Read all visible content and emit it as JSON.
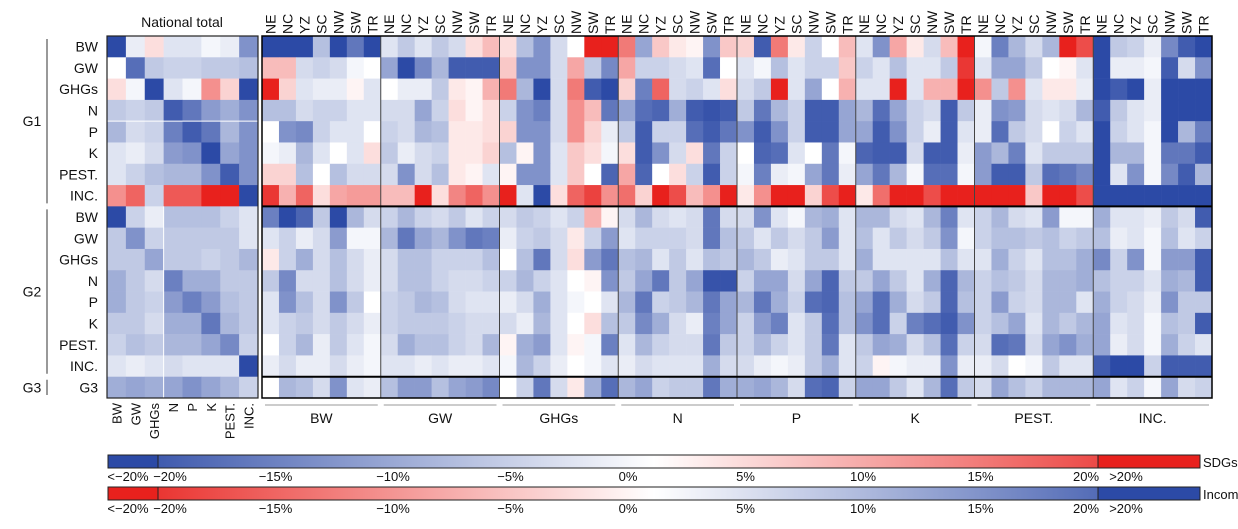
{
  "chart_data": {
    "type": "heatmap",
    "title": "National total",
    "value_unit": "%",
    "color_range": [
      -20,
      20
    ],
    "colors": {
      "negative": "#2c4aa6",
      "zero": "#ffffff",
      "positive": "#e8211d"
    },
    "row_groups": [
      {
        "label": "G1",
        "rows": [
          "BW",
          "GW",
          "GHGs",
          "N",
          "P",
          "K",
          "PEST.",
          "INC."
        ]
      },
      {
        "label": "G2",
        "rows": [
          "BW",
          "GW",
          "GHGs",
          "N",
          "P",
          "K",
          "PEST.",
          "INC."
        ]
      },
      {
        "label": "G3",
        "rows": [
          "G3"
        ]
      }
    ],
    "national_columns": [
      "BW",
      "GW",
      "GHGs",
      "N",
      "P",
      "K",
      "PEST.",
      "INC."
    ],
    "regions": [
      "NE",
      "NC",
      "YZ",
      "SC",
      "NW",
      "SW",
      "TR"
    ],
    "column_groups": [
      "BW",
      "GW",
      "GHGs",
      "N",
      "P",
      "K",
      "PEST.",
      "INC."
    ],
    "national_values": [
      [
        -20,
        -2,
        3,
        -3,
        -3,
        -1,
        -2,
        -12
      ],
      [
        0,
        -16,
        -6,
        -5,
        -5,
        -6,
        -6,
        -7
      ],
      [
        3,
        -1,
        -20,
        -3,
        -1,
        10,
        4,
        -20
      ],
      [
        -6,
        -5,
        -6,
        -18,
        -15,
        -11,
        -9,
        -12
      ],
      [
        -8,
        -4,
        -5,
        -14,
        -18,
        -15,
        -8,
        -12
      ],
      [
        -3,
        -2,
        -4,
        -11,
        -12,
        -20,
        -10,
        -12
      ],
      [
        -3,
        -5,
        -7,
        -8,
        -8,
        -12,
        -18,
        -12
      ],
      [
        10,
        14,
        -5,
        15,
        15,
        20,
        20,
        -20
      ],
      [
        -20,
        -5,
        -2,
        -7,
        -7,
        -7,
        -5,
        -3
      ],
      [
        -6,
        -12,
        -5,
        -6,
        -6,
        -6,
        -6,
        -3
      ],
      [
        -6,
        -6,
        -10,
        -6,
        -6,
        -5,
        -6,
        -8
      ],
      [
        -9,
        -6,
        -4,
        -14,
        -9,
        -9,
        -6,
        -6
      ],
      [
        -9,
        -6,
        -5,
        -11,
        -14,
        -11,
        -7,
        -6
      ],
      [
        -6,
        -6,
        -4,
        -9,
        -9,
        -15,
        -8,
        -6
      ],
      [
        -5,
        -7,
        -6,
        -8,
        -8,
        -10,
        -13,
        -5
      ],
      [
        -3,
        -2,
        -3,
        -4,
        -3,
        -3,
        -3,
        -20
      ],
      [
        -9,
        -10,
        -9,
        -10,
        -12,
        -10,
        -8,
        -5
      ]
    ],
    "regional_values": [
      [
        -20,
        -20,
        -20,
        -7,
        -20,
        -15,
        -20,
        -3,
        -6,
        -3,
        -6,
        -4,
        3,
        6,
        3,
        -7,
        -12,
        -4,
        0,
        20,
        20,
        12,
        -10,
        5,
        2,
        1,
        -12,
        5,
        4,
        -18,
        12,
        2,
        -5,
        0,
        6,
        -3,
        -12,
        8,
        2,
        -4,
        6,
        20,
        -1,
        -14,
        -8,
        -4,
        -8,
        20,
        16,
        -20,
        -6,
        -5,
        -2,
        -13,
        -18,
        -20
      ],
      [
        6,
        6,
        -4,
        -5,
        -4,
        -1,
        0,
        -10,
        -20,
        -13,
        -8,
        -18,
        -18,
        -18,
        5,
        -12,
        -12,
        -4,
        8,
        -6,
        -13,
        8,
        -5,
        -5,
        -4,
        -3,
        -16,
        0,
        -3,
        -1,
        -7,
        -3,
        -5,
        -5,
        5,
        -5,
        -3,
        -7,
        -3,
        -3,
        -6,
        18,
        -3,
        -10,
        -10,
        -6,
        0,
        1,
        -3,
        -20,
        -2,
        -2,
        -1,
        -18,
        -4,
        -12
      ],
      [
        20,
        4,
        -3,
        -2,
        -2,
        1,
        -3,
        0,
        -2,
        -2,
        -6,
        2,
        1,
        7,
        12,
        -8,
        -20,
        -4,
        12,
        -18,
        -20,
        4,
        -14,
        14,
        -4,
        -5,
        -3,
        3,
        -4,
        -6,
        20,
        -3,
        -10,
        0,
        7,
        -3,
        -3,
        20,
        -3,
        7,
        7,
        20,
        10,
        -6,
        10,
        -3,
        2,
        2,
        -2,
        -20,
        -18,
        -20,
        -2,
        -20,
        -20,
        -20
      ],
      [
        -7,
        -7,
        -4,
        -5,
        -5,
        -3,
        -3,
        -4,
        -4,
        -10,
        -5,
        3,
        1,
        3,
        -5,
        -12,
        -14,
        -4,
        10,
        6,
        -15,
        -10,
        -16,
        -17,
        -9,
        -18,
        -19,
        -18,
        -6,
        -15,
        -8,
        -5,
        -18,
        -18,
        -10,
        -8,
        -16,
        -10,
        -5,
        -4,
        -18,
        -6,
        -2,
        -12,
        -11,
        -4,
        -3,
        -4,
        -8,
        -18,
        -6,
        -3,
        -2,
        -20,
        -20,
        -20
      ],
      [
        0,
        -12,
        -13,
        -5,
        -3,
        -3,
        0,
        -5,
        -4,
        -8,
        -7,
        2,
        2,
        3,
        4,
        -12,
        -12,
        -4,
        10,
        4,
        -2,
        -6,
        -18,
        -5,
        -5,
        -16,
        -18,
        -15,
        -12,
        -18,
        -12,
        -5,
        -18,
        -18,
        -10,
        -10,
        -18,
        -12,
        -5,
        -2,
        -18,
        -3,
        -2,
        -16,
        -6,
        -4,
        0,
        -5,
        -3,
        -20,
        -5,
        -3,
        -1,
        -20,
        -8,
        -14
      ],
      [
        -1,
        -2,
        -8,
        -3,
        0,
        -3,
        3,
        -6,
        -2,
        -4,
        -5,
        2,
        2,
        4,
        -7,
        1,
        -12,
        -3,
        5,
        3,
        -1,
        3,
        -18,
        -12,
        -4,
        3,
        -15,
        -5,
        0,
        -17,
        -16,
        -3,
        0,
        -15,
        -1,
        -17,
        -18,
        -18,
        -4,
        -18,
        -18,
        -2,
        -11,
        -8,
        -14,
        -3,
        -6,
        -6,
        -6,
        -20,
        -8,
        -8,
        -1,
        -15,
        -15,
        -18
      ],
      [
        4,
        4,
        -7,
        0,
        -7,
        -4,
        -4,
        -4,
        -12,
        -4,
        -7,
        2,
        1,
        -3,
        1,
        -12,
        -12,
        -3,
        5,
        0,
        -17,
        8,
        -17,
        0,
        3,
        -5,
        -18,
        -5,
        -1,
        -14,
        -2,
        -1,
        -10,
        -15,
        -2,
        -10,
        -15,
        -8,
        -1,
        -16,
        -16,
        -1,
        -11,
        -18,
        -18,
        -6,
        -16,
        -15,
        -13,
        -20,
        -3,
        -12,
        -1,
        -13,
        -18,
        -8
      ],
      [
        18,
        7,
        14,
        3,
        8,
        9,
        9,
        6,
        6,
        20,
        3,
        11,
        14,
        10,
        20,
        -3,
        -20,
        3,
        14,
        17,
        10,
        13,
        4,
        20,
        16,
        6,
        10,
        20,
        2,
        10,
        20,
        20,
        4,
        16,
        20,
        2,
        13,
        20,
        20,
        16,
        20,
        20,
        20,
        20,
        20,
        5,
        20,
        20,
        16,
        -20,
        -20,
        -20,
        -20,
        -20,
        -20,
        -20
      ],
      [
        -14,
        -20,
        -17,
        -6,
        -20,
        -8,
        -4,
        -5,
        -8,
        -5,
        -4,
        -6,
        -3,
        -5,
        -4,
        -6,
        -5,
        -3,
        -5,
        7,
        1,
        -4,
        -8,
        -4,
        -3,
        -4,
        -15,
        -4,
        -4,
        -12,
        -3,
        -1,
        -8,
        -9,
        -3,
        -8,
        -8,
        -4,
        -3,
        -8,
        -14,
        -3,
        -5,
        -8,
        -4,
        -3,
        -11,
        -1,
        -1,
        -9,
        -3,
        -3,
        -2,
        -6,
        -4,
        -18
      ],
      [
        -3,
        -5,
        -2,
        -4,
        -11,
        -1,
        -1,
        -8,
        -15,
        -10,
        -8,
        -12,
        -15,
        -14,
        -2,
        -5,
        -6,
        -4,
        2,
        -5,
        -11,
        -3,
        -5,
        -5,
        -5,
        -4,
        -15,
        -7,
        -6,
        -3,
        -6,
        -4,
        -6,
        -11,
        -3,
        -7,
        -3,
        -6,
        -4,
        -6,
        -12,
        -1,
        -5,
        -7,
        -7,
        -6,
        -7,
        -5,
        -6,
        -7,
        -2,
        -3,
        -1,
        -7,
        -3,
        -5
      ],
      [
        2,
        -5,
        -9,
        -4,
        -7,
        -4,
        -2,
        -4,
        -7,
        -7,
        -5,
        -5,
        -5,
        -7,
        0,
        -7,
        -15,
        -4,
        3,
        -11,
        -15,
        -7,
        -8,
        -3,
        -6,
        -3,
        -7,
        -6,
        -8,
        -6,
        -2,
        -3,
        -6,
        -6,
        -3,
        -9,
        -3,
        -3,
        -3,
        -3,
        -7,
        -3,
        -3,
        -9,
        -5,
        -3,
        -7,
        -7,
        -9,
        -13,
        -5,
        -12,
        -1,
        -11,
        -11,
        -18
      ],
      [
        -6,
        -13,
        -4,
        -4,
        -7,
        -4,
        -2,
        -4,
        -7,
        -7,
        -5,
        -4,
        -4,
        -5,
        -5,
        -8,
        -5,
        -3,
        0,
        1,
        -12,
        -6,
        -10,
        -15,
        -6,
        -10,
        -19,
        -19,
        -5,
        -10,
        -10,
        -4,
        -10,
        -17,
        -6,
        -6,
        -10,
        -6,
        -3,
        -9,
        -17,
        -8,
        -5,
        -7,
        -6,
        -4,
        -8,
        -8,
        -9,
        -7,
        -5,
        -5,
        -3,
        -9,
        -8,
        -18
      ],
      [
        -3,
        -12,
        -7,
        -4,
        -12,
        -6,
        0,
        -5,
        -6,
        -8,
        -7,
        -4,
        -3,
        -3,
        -2,
        -4,
        -9,
        -3,
        -1,
        0,
        -3,
        -8,
        -15,
        -5,
        -6,
        -8,
        -15,
        -10,
        -8,
        -15,
        -9,
        -5,
        -16,
        -17,
        -7,
        -10,
        -16,
        -9,
        -4,
        -6,
        -17,
        -7,
        -5,
        -11,
        -5,
        -4,
        -8,
        -8,
        -3,
        -9,
        -5,
        -4,
        -2,
        -12,
        -6,
        -6
      ],
      [
        -3,
        -5,
        -6,
        -4,
        -6,
        -4,
        -2,
        -5,
        -6,
        -6,
        -6,
        -5,
        -4,
        -4,
        -4,
        -2,
        -8,
        -3,
        0,
        3,
        -7,
        -6,
        -13,
        -9,
        -4,
        -2,
        -14,
        -10,
        -5,
        -11,
        -14,
        -3,
        -6,
        -16,
        -7,
        -12,
        -16,
        -5,
        -14,
        -16,
        -18,
        -12,
        -5,
        -7,
        -10,
        -3,
        -8,
        -6,
        -8,
        -10,
        -3,
        -4,
        -1,
        -7,
        -6,
        -18
      ],
      [
        0,
        -5,
        -8,
        -2,
        -6,
        -3,
        -1,
        -4,
        -9,
        -7,
        -7,
        -5,
        -4,
        -8,
        1,
        -9,
        -11,
        -3,
        1,
        -1,
        -14,
        -3,
        -8,
        -5,
        -4,
        -4,
        -15,
        -6,
        -5,
        -8,
        -5,
        -3,
        -6,
        -15,
        -3,
        -6,
        -10,
        -9,
        -4,
        -7,
        -16,
        -5,
        -4,
        -16,
        -15,
        -4,
        -10,
        -12,
        -9,
        -10,
        -2,
        -4,
        -1,
        -9,
        -5,
        -3
      ],
      [
        -2,
        -4,
        -2,
        -2,
        -4,
        -2,
        -1,
        -3,
        -3,
        -2,
        -3,
        -2,
        -2,
        -3,
        -1,
        -8,
        -5,
        -2,
        0,
        -1,
        -3,
        -2,
        -4,
        -3,
        -3,
        -3,
        -9,
        -4,
        -4,
        -2,
        -1,
        -2,
        -6,
        -9,
        -3,
        -5,
        1,
        -1,
        -2,
        -2,
        -12,
        -2,
        -2,
        -4,
        0,
        -1,
        -6,
        -3,
        -3,
        -18,
        -20,
        -20,
        -5,
        -18,
        -18,
        -18
      ],
      [
        0,
        -8,
        -7,
        -4,
        -12,
        -3,
        -2,
        -7,
        -11,
        -11,
        -7,
        -10,
        -11,
        -13,
        0,
        -5,
        -15,
        -4,
        2,
        -9,
        -16,
        -8,
        -10,
        -5,
        -6,
        -6,
        -15,
        -9,
        -9,
        -10,
        -8,
        -4,
        -16,
        -17,
        -5,
        -10,
        -10,
        -6,
        -3,
        -8,
        -16,
        -6,
        -4,
        -10,
        -7,
        -5,
        -8,
        -8,
        -8,
        -10,
        -3,
        -5,
        -1,
        -10,
        -4,
        -5
      ]
    ],
    "legend": {
      "sdgs_label": "SDGs",
      "income_label": "Income",
      "ticks": [
        "<−20%",
        "−20%",
        "−15%",
        "−10%",
        "−5%",
        "0%",
        "5%",
        "10%",
        "15%",
        "20%",
        ">20%"
      ],
      "tick_values": [
        -25,
        -20,
        -15,
        -10,
        -5,
        0,
        5,
        10,
        15,
        20,
        25
      ]
    }
  }
}
